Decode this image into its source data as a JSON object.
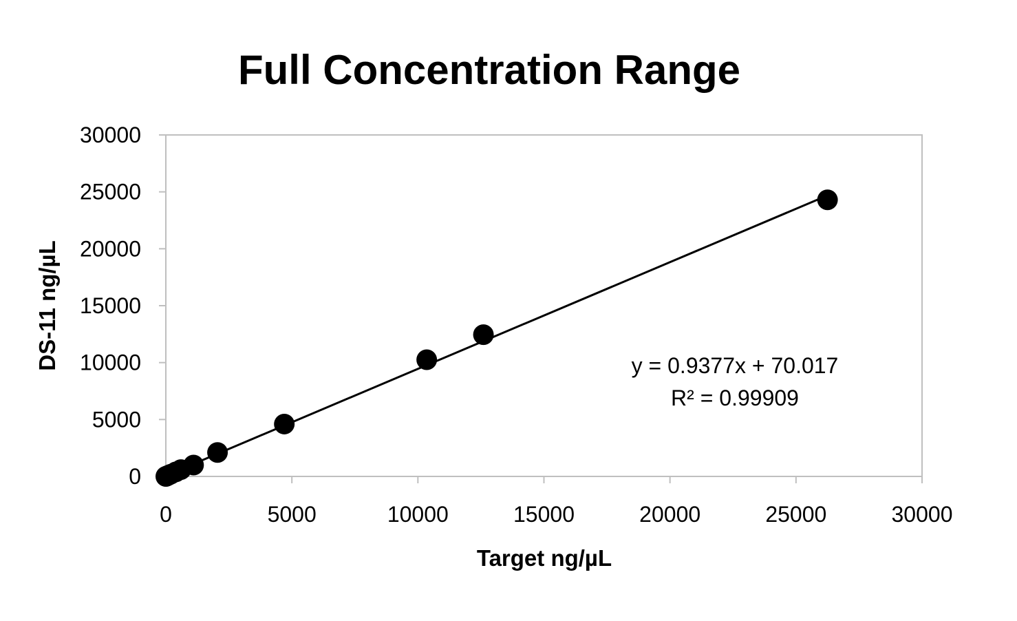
{
  "chart_data": {
    "type": "scatter",
    "title": "Full Concentration Range",
    "xlabel": "Target ng/µL",
    "ylabel": "DS-11 ng/µL",
    "xlim": [
      0,
      30000
    ],
    "ylim": [
      0,
      30000
    ],
    "x_ticks": [
      "0",
      "5000",
      "10000",
      "15000",
      "20000",
      "25000",
      "30000"
    ],
    "y_ticks": [
      "0",
      "5000",
      "10000",
      "15000",
      "20000",
      "25000",
      "30000"
    ],
    "grid": false,
    "legend": "none",
    "colors": {
      "points": "#000000",
      "trendline": "#000000",
      "plot_border": "#bfbfbf"
    },
    "series": [
      {
        "points": [
          {
            "x": 0,
            "y": 0
          },
          {
            "x": 10,
            "y": 10
          },
          {
            "x": 25,
            "y": 25
          },
          {
            "x": 50,
            "y": 50
          },
          {
            "x": 100,
            "y": 100
          },
          {
            "x": 200,
            "y": 200
          },
          {
            "x": 400,
            "y": 400
          },
          {
            "x": 600,
            "y": 600
          },
          {
            "x": 1100,
            "y": 1000
          },
          {
            "x": 2050,
            "y": 2100
          },
          {
            "x": 4700,
            "y": 4600
          },
          {
            "x": 10350,
            "y": 10250
          },
          {
            "x": 12600,
            "y": 12450
          },
          {
            "x": 26250,
            "y": 24300
          }
        ]
      }
    ],
    "trendline": {
      "type": "linear",
      "slope": 0.9377,
      "intercept": 70.017,
      "x_range": [
        0,
        26250
      ]
    },
    "annotations": {
      "equation": "y = 0.9377x + 70.017",
      "r_squared": "R² = 0.99909"
    }
  }
}
